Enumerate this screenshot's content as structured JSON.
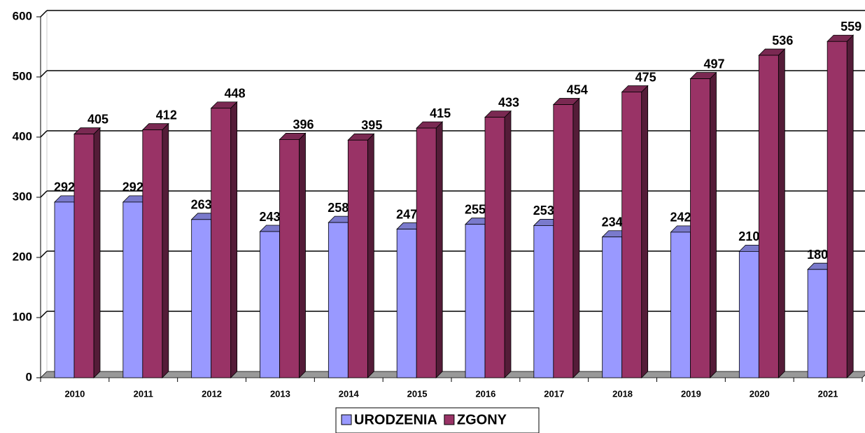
{
  "chart_data": {
    "type": "bar",
    "categories": [
      "2010",
      "2011",
      "2012",
      "2013",
      "2014",
      "2015",
      "2016",
      "2017",
      "2018",
      "2019",
      "2020",
      "2021"
    ],
    "series": [
      {
        "name": "URODZENIA",
        "color": "#9999ff",
        "values": [
          292,
          292,
          263,
          243,
          258,
          247,
          255,
          253,
          234,
          242,
          210,
          180
        ]
      },
      {
        "name": "ZGONY",
        "color": "#993366",
        "values": [
          405,
          412,
          448,
          396,
          395,
          415,
          433,
          454,
          475,
          497,
          536,
          559
        ]
      }
    ],
    "ylim": [
      0,
      600
    ],
    "yticks": [
      0,
      100,
      200,
      300,
      400,
      500,
      600
    ],
    "grid": true
  }
}
